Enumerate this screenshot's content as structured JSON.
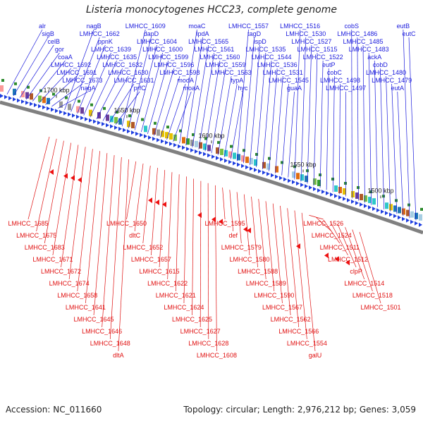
{
  "title": "Listeria monocytogenes HCC23, complete genome",
  "footer": {
    "accession": "Accession: NC_011660",
    "summary": "Topology: circular; Length: 2,976,212 bp; Genes: 3,059"
  },
  "colors": {
    "forward_label": "#1a1adc",
    "reverse_label": "#e01010",
    "forward_arrow": "#1f3fe0",
    "reverse_arrow": "#ee1111",
    "backbone": "#808080"
  },
  "scale_ticks": [
    "1700 kbp",
    "1650 kbp",
    "1600 kbp",
    "1550 kbp",
    "1500 kbp"
  ],
  "forward_labels": [
    "alr",
    "sigB",
    "celB",
    "gor",
    "coaA",
    "LMHCC_1692",
    "LMHCC_1691",
    "LMHCC_1673",
    "nagA",
    "nagB",
    "LMHCC_1662",
    "ppnK",
    "LMHCC_1639",
    "LMHCC_1635",
    "LMHCC_1632",
    "LMHCC_1630",
    "LMHCC_1631",
    "prfC",
    "LMHCC_1609",
    "dapD",
    "LMHCC_1604",
    "LMHCC_1600",
    "LMHCC_1599",
    "LMHCC_1596",
    "LMHCC_1598",
    "modA",
    "moaA",
    "moaC",
    "lpdA",
    "LMHCC_1565",
    "LMHCC_1561",
    "LMHCC_1560",
    "LMHCC_1559",
    "LMHCC_1563",
    "typA",
    "hyc",
    "LMHCC_1557",
    "tagD",
    "ispD",
    "LMHCC_1535",
    "LMHCC_1544",
    "LMHCC_1536",
    "LMHCC_1531",
    "LMHCC_1545",
    "guaA",
    "LMHCC_1516",
    "LMHCC_1530",
    "LMHCC_1527",
    "LMHCC_1515",
    "LMHCC_1522",
    "eutP",
    "cobC",
    "LMHCC_1498",
    "LMHCC_1497",
    "cobS",
    "LMHCC_1486",
    "LMHCC_1485",
    "LMHCC_1483",
    "ackA",
    "cobD",
    "LMHCC_1480",
    "LMHCC_1479",
    "eutA",
    "eutB",
    "eutC"
  ],
  "reverse_labels": [
    "LMHCC_1685",
    "LMHCC_1675",
    "LMHCC_1683",
    "LMHCC_1671",
    "LMHCC_1672",
    "LMHCC_1674",
    "LMHCC_1658",
    "LMHCC_1641",
    "LMHCC_1645",
    "LMHCC_1646",
    "LMHCC_1648",
    "dltA",
    "LMHCC_1650",
    "dltC",
    "LMHCC_1652",
    "LMHCC_1657",
    "LMHCC_1615",
    "LMHCC_1622",
    "LMHCC_1621",
    "LMHCC_1624",
    "LMHCC_1625",
    "LMHCC_1627",
    "LMHCC_1628",
    "LMHCC_1608",
    "LMHCC_1595",
    "def",
    "LMHCC_1579",
    "LMHCC_1580",
    "LMHCC_1588",
    "LMHCC_1589",
    "LMHCC_1590",
    "LMHCC_1567",
    "LMHCC_1562",
    "LMHCC_1566",
    "LMHCC_1554",
    "galU",
    "LMHCC_1526",
    "LMHCC_1524",
    "LMHCC_1511",
    "LMHCC_1512",
    "clpP",
    "LMHCC_1514",
    "LMHCC_1518",
    "LMHCC_1501"
  ]
}
